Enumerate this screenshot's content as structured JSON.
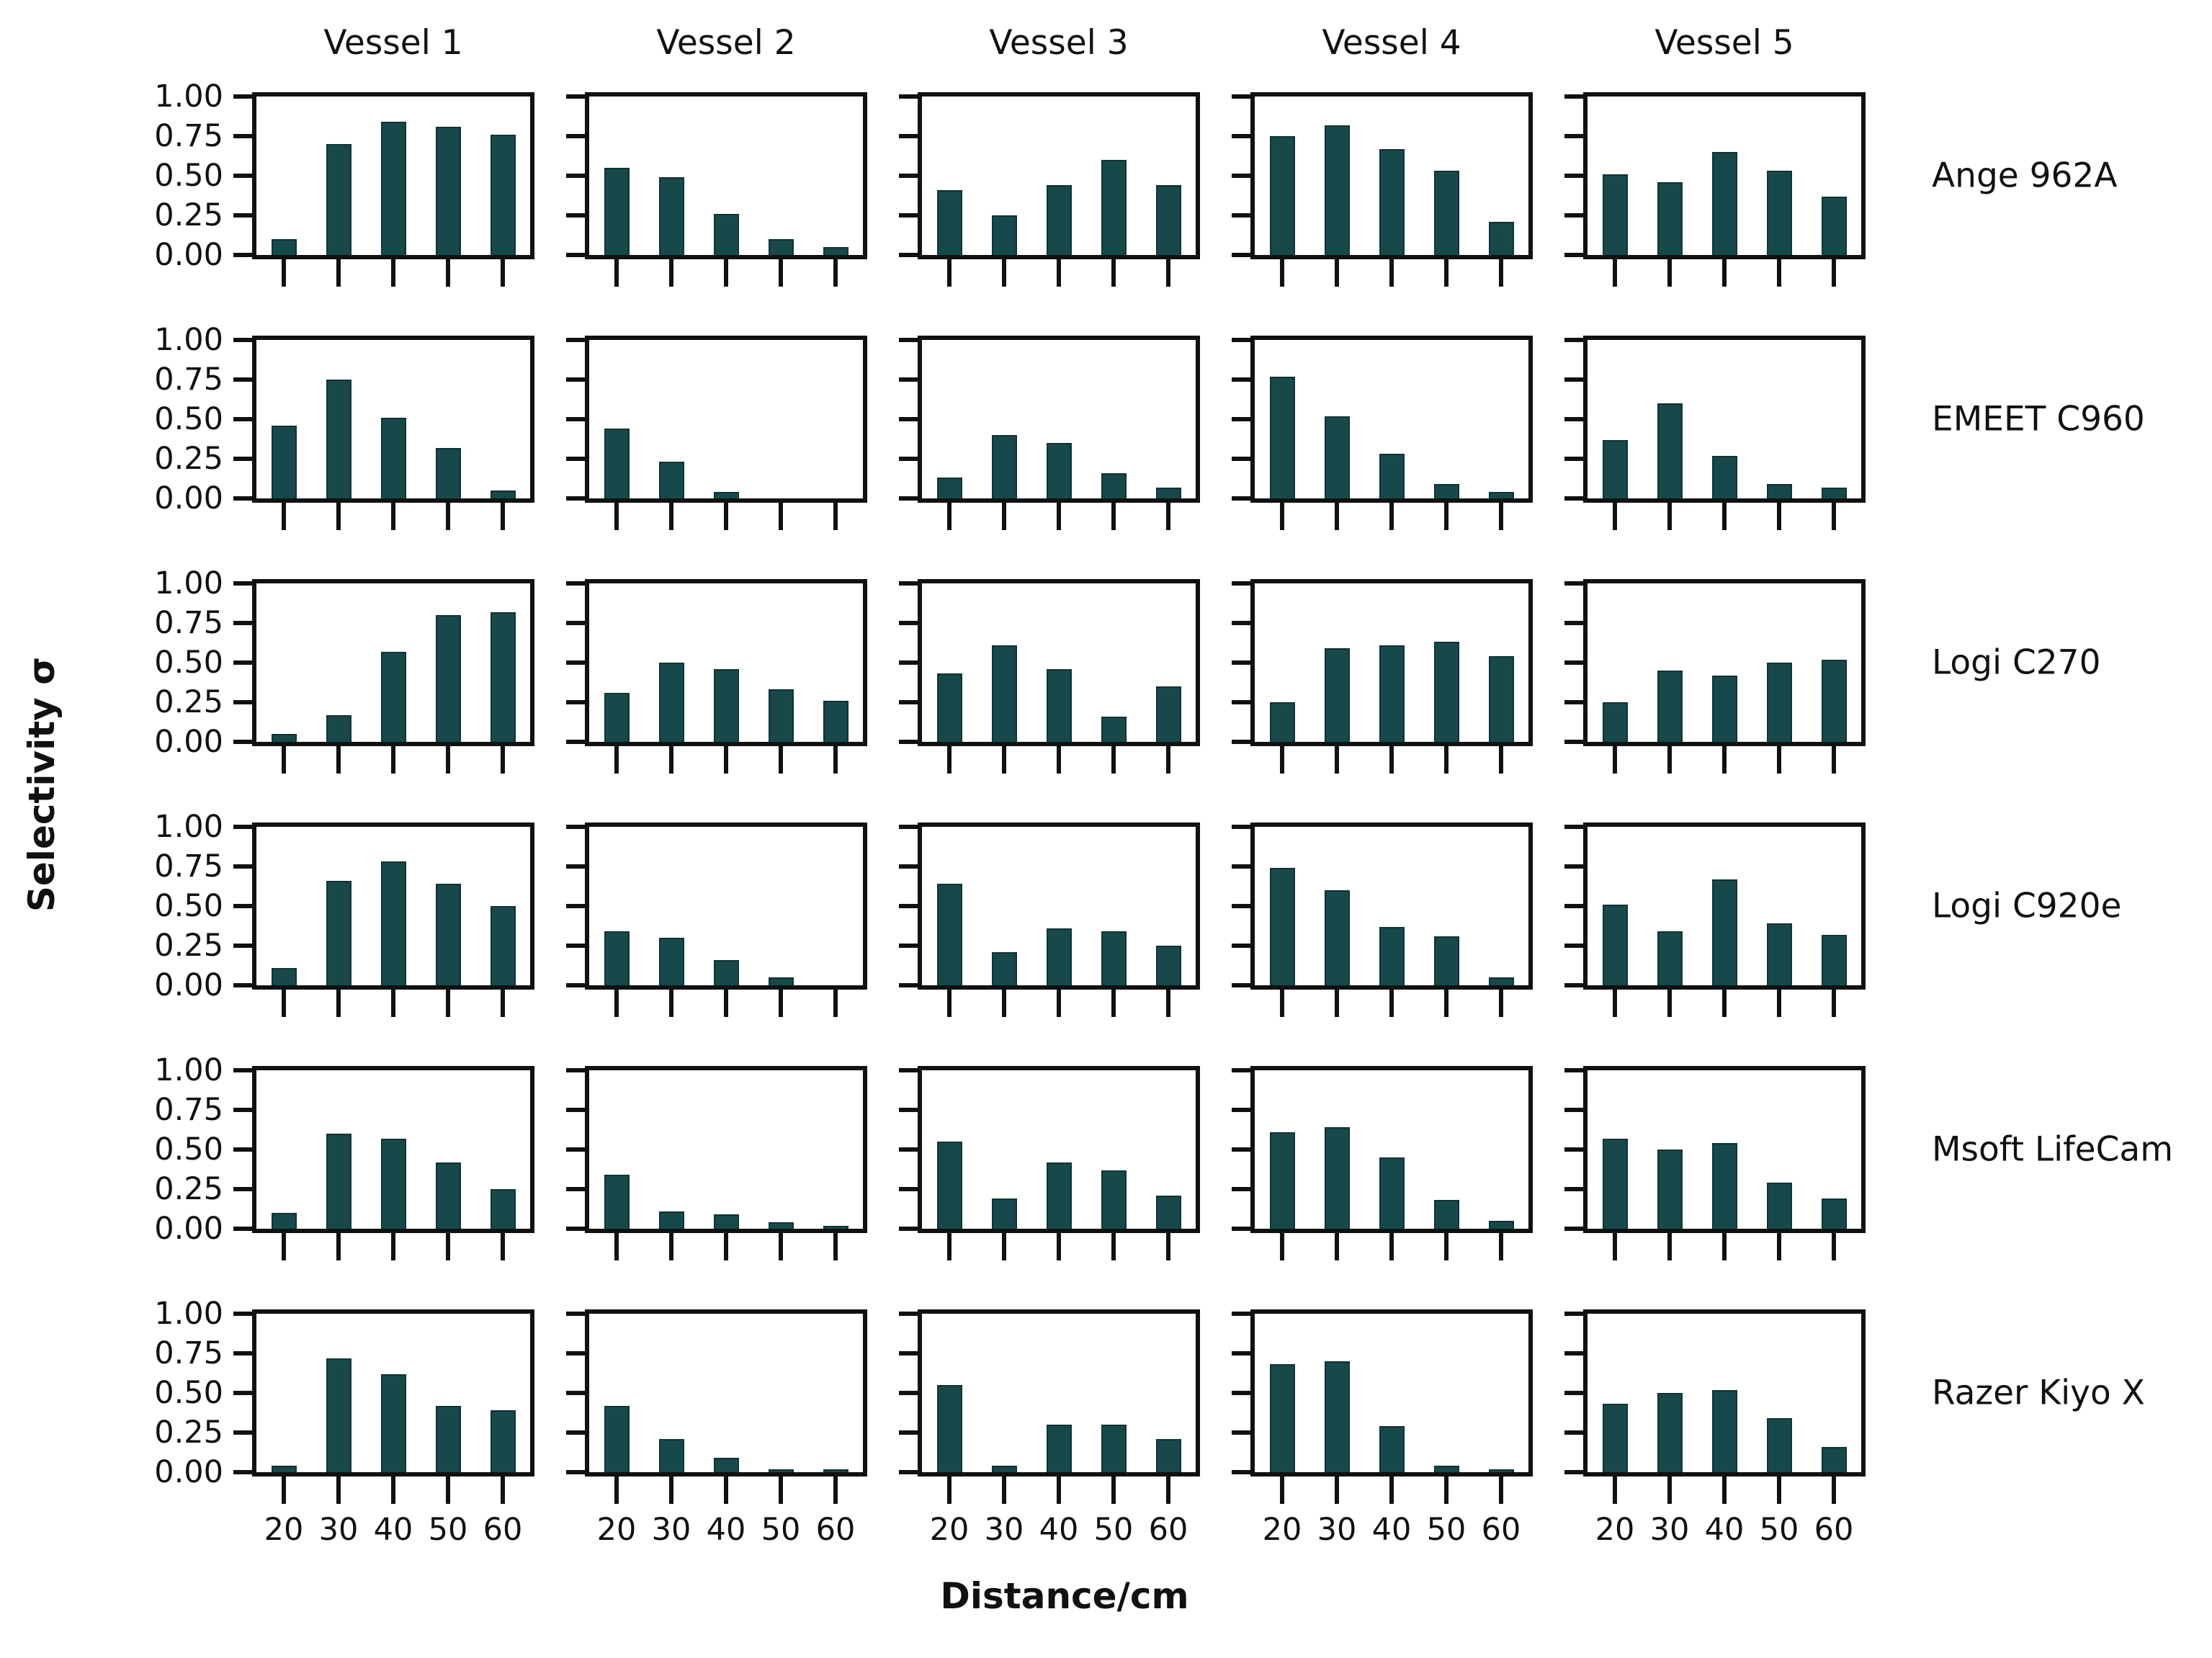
{
  "figure": {
    "ylabel": "Selectivity σ",
    "xlabel": "Distance/cm",
    "ytick_labels": [
      "1.00",
      "0.75",
      "0.50",
      "0.25",
      "0.00"
    ],
    "xtick_labels": [
      "20",
      "30",
      "40",
      "50",
      "60"
    ],
    "colors": {
      "bar": "#17494B",
      "axis": "#111111",
      "text": "#111111",
      "background": "#FFFFFF"
    }
  },
  "chart_data": {
    "type": "bar",
    "title": "",
    "xlabel": "Distance/cm",
    "ylabel": "Selectivity σ",
    "x": [
      20,
      30,
      40,
      50,
      60
    ],
    "ylim": [
      0,
      1
    ],
    "yticks": [
      0,
      0.25,
      0.5,
      0.75,
      1.0
    ],
    "grid": false,
    "legend": "none",
    "columns": [
      "Vessel 1",
      "Vessel 2",
      "Vessel 3",
      "Vessel 4",
      "Vessel 5"
    ],
    "rows": [
      "Ange 962A",
      "EMEET C960",
      "Logi C270",
      "Logi C920e",
      "Msoft LifeCam",
      "Razer Kiyo X"
    ],
    "values": {
      "Ange 962A": [
        [
          0.1,
          0.7,
          0.84,
          0.81,
          0.76
        ],
        [
          0.55,
          0.49,
          0.26,
          0.1,
          0.05
        ],
        [
          0.41,
          0.25,
          0.44,
          0.6,
          0.44
        ],
        [
          0.75,
          0.82,
          0.67,
          0.53,
          0.21
        ],
        [
          0.51,
          0.46,
          0.65,
          0.53,
          0.37
        ]
      ],
      "EMEET C960": [
        [
          0.46,
          0.75,
          0.51,
          0.32,
          0.05
        ],
        [
          0.44,
          0.23,
          0.04,
          0.0,
          0.0
        ],
        [
          0.13,
          0.4,
          0.35,
          0.16,
          0.07
        ],
        [
          0.77,
          0.52,
          0.28,
          0.09,
          0.04
        ],
        [
          0.37,
          0.6,
          0.27,
          0.09,
          0.07
        ]
      ],
      "Logi C270": [
        [
          0.05,
          0.17,
          0.57,
          0.8,
          0.82
        ],
        [
          0.31,
          0.5,
          0.46,
          0.33,
          0.26
        ],
        [
          0.43,
          0.61,
          0.46,
          0.16,
          0.35
        ],
        [
          0.25,
          0.59,
          0.61,
          0.63,
          0.54
        ],
        [
          0.25,
          0.45,
          0.42,
          0.5,
          0.52
        ]
      ],
      "Logi C920e": [
        [
          0.11,
          0.66,
          0.78,
          0.64,
          0.5
        ],
        [
          0.34,
          0.3,
          0.16,
          0.05,
          0.0
        ],
        [
          0.64,
          0.21,
          0.36,
          0.34,
          0.25
        ],
        [
          0.74,
          0.6,
          0.37,
          0.31,
          0.05
        ],
        [
          0.51,
          0.34,
          0.67,
          0.39,
          0.32
        ]
      ],
      "Msoft LifeCam": [
        [
          0.1,
          0.6,
          0.57,
          0.42,
          0.25
        ],
        [
          0.34,
          0.11,
          0.09,
          0.04,
          0.02
        ],
        [
          0.55,
          0.19,
          0.42,
          0.37,
          0.21
        ],
        [
          0.61,
          0.64,
          0.45,
          0.18,
          0.05
        ],
        [
          0.57,
          0.5,
          0.54,
          0.29,
          0.19
        ]
      ],
      "Razer Kiyo X": [
        [
          0.04,
          0.72,
          0.62,
          0.42,
          0.39
        ],
        [
          0.42,
          0.21,
          0.09,
          0.02,
          0.02
        ],
        [
          0.55,
          0.04,
          0.3,
          0.3,
          0.21
        ],
        [
          0.68,
          0.7,
          0.29,
          0.04,
          0.02
        ],
        [
          0.43,
          0.5,
          0.52,
          0.34,
          0.16
        ]
      ]
    }
  }
}
